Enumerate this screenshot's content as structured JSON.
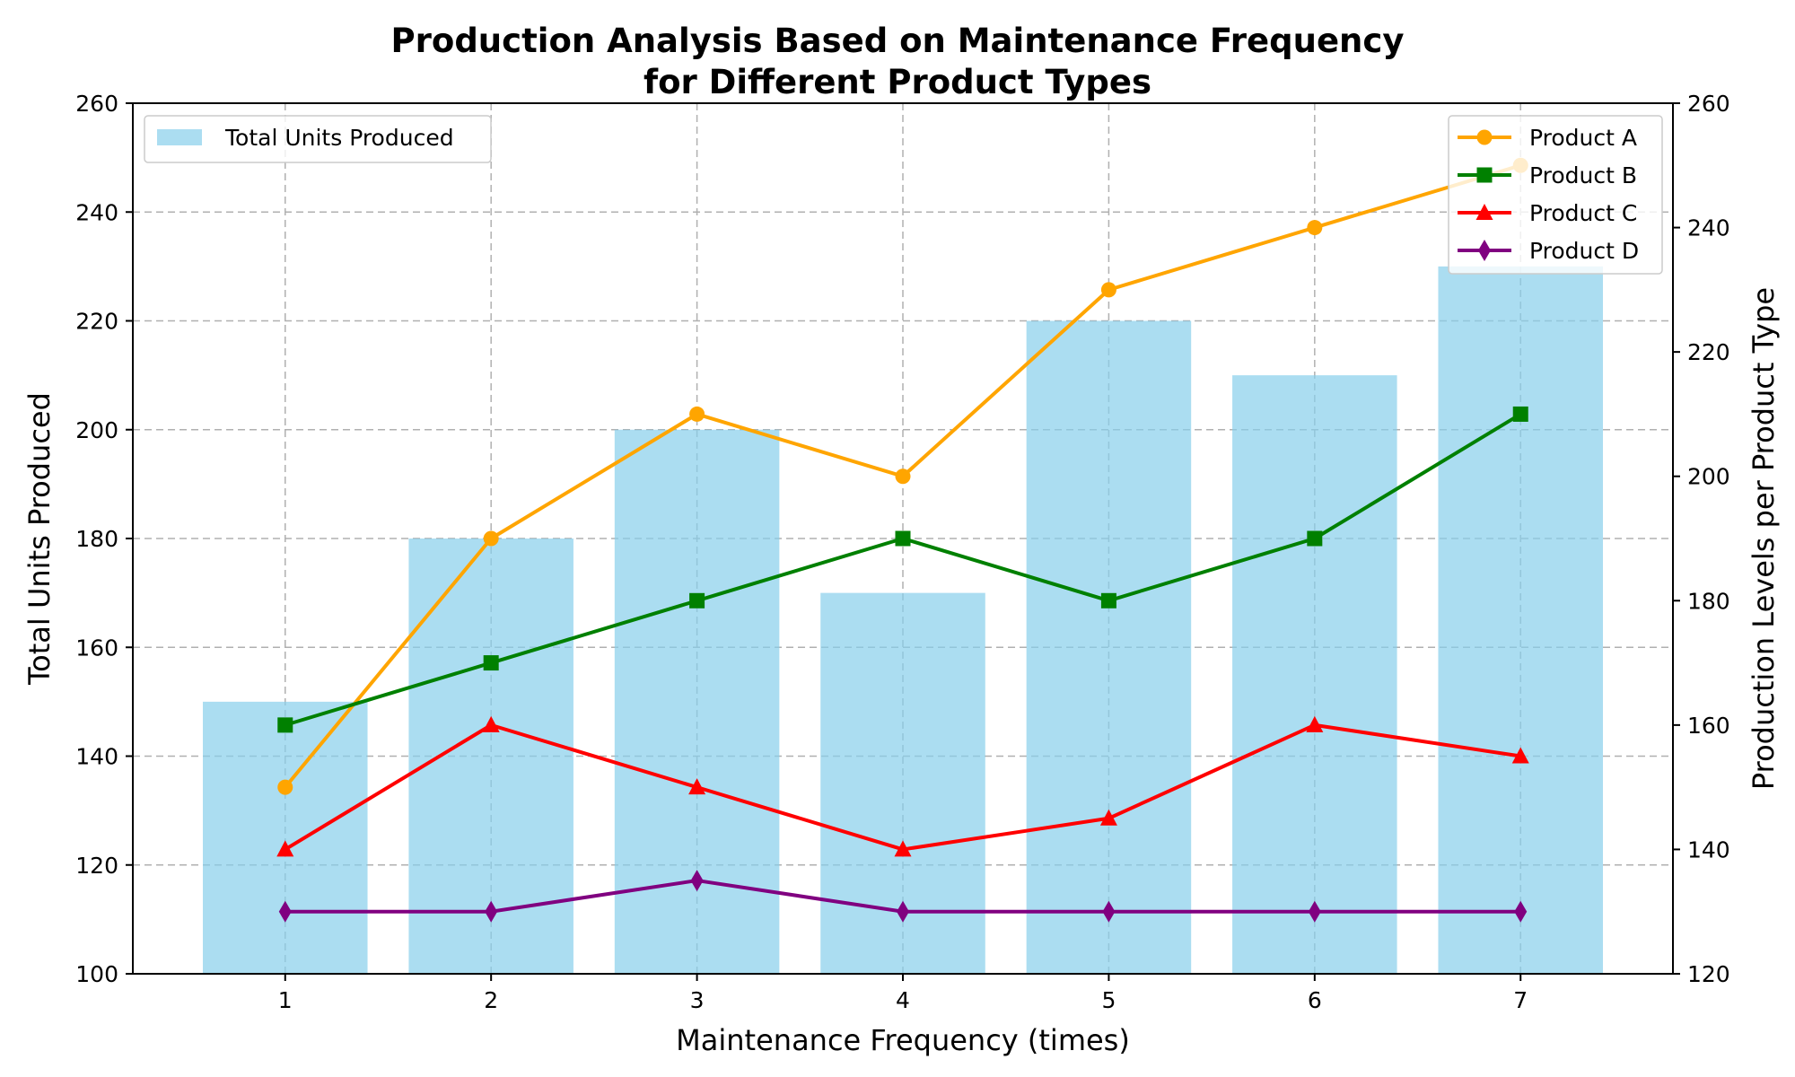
{
  "chart_data": {
    "type": "bar",
    "title_line1": "Production Analysis Based on Maintenance Frequency",
    "title_line2": "for Different Product Types",
    "xlabel": "Maintenance Frequency (times)",
    "ylabel": "Total Units Produced",
    "y2label": "Production Levels per Product Type",
    "categories": [
      "1",
      "2",
      "3",
      "4",
      "5",
      "6",
      "7"
    ],
    "x": [
      1,
      2,
      3,
      4,
      5,
      6,
      7
    ],
    "ylim": [
      100,
      260
    ],
    "yticks": [
      100,
      120,
      140,
      160,
      180,
      200,
      220,
      240,
      260
    ],
    "y2lim": [
      120,
      260
    ],
    "y2ticks": [
      120,
      140,
      160,
      180,
      200,
      220,
      240,
      260
    ],
    "grid": true,
    "bar_series": {
      "name": "Total Units Produced",
      "values": [
        150,
        180,
        200,
        170,
        220,
        210,
        230
      ],
      "color": "#87CEEB"
    },
    "bar_legend_location": "upper-left",
    "line_legend_location": "upper-right",
    "line_series": [
      {
        "name": "Product A",
        "values": [
          150,
          190,
          210,
          200,
          230,
          240,
          250
        ],
        "color": "#FFA500",
        "marker": "circle"
      },
      {
        "name": "Product B",
        "values": [
          160,
          170,
          180,
          190,
          180,
          190,
          210
        ],
        "color": "#008000",
        "marker": "square"
      },
      {
        "name": "Product C",
        "values": [
          140,
          160,
          150,
          140,
          145,
          160,
          155
        ],
        "color": "#FF0000",
        "marker": "triangle"
      },
      {
        "name": "Product D",
        "values": [
          130,
          130,
          135,
          130,
          130,
          130,
          130
        ],
        "color": "#800080",
        "marker": "diamond"
      }
    ]
  }
}
